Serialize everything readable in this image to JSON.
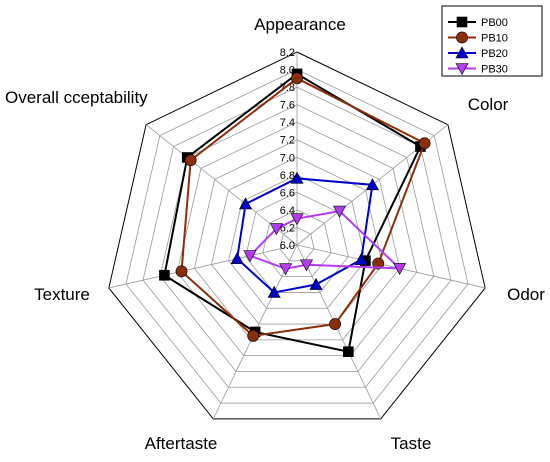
{
  "chart_data": {
    "type": "radar",
    "axes": [
      "Appearance",
      "Color",
      "Odor",
      "Taste",
      "Aftertaste",
      "Texture",
      "Overall cceptability"
    ],
    "rlim": [
      6.0,
      8.2
    ],
    "ticks": [
      "6.0",
      "6.2",
      "6.4",
      "6.6",
      "6.8",
      "7.0",
      "7.2",
      "7.4",
      "7.6",
      "7.8",
      "8.0",
      "8.2"
    ],
    "grid": true,
    "legend_position": "top-right",
    "series": [
      {
        "name": "PB00",
        "color": "#000000",
        "marker": "square",
        "values": [
          7.95,
          7.8,
          6.8,
          7.35,
          7.1,
          7.55,
          7.6
        ]
      },
      {
        "name": "PB10",
        "color": "#8B2E0B",
        "marker": "circle",
        "values": [
          7.9,
          7.86,
          6.95,
          7.0,
          7.15,
          7.35,
          7.55
        ]
      },
      {
        "name": "PB20",
        "color": "#0000CC",
        "marker": "triangle-up",
        "values": [
          6.76,
          7.1,
          6.75,
          6.5,
          6.6,
          6.7,
          6.75
        ]
      },
      {
        "name": "PB30",
        "color": "#B43CF0",
        "marker": "triangle-down",
        "values": [
          6.3,
          6.62,
          7.2,
          6.25,
          6.3,
          6.55,
          6.3
        ]
      }
    ]
  }
}
